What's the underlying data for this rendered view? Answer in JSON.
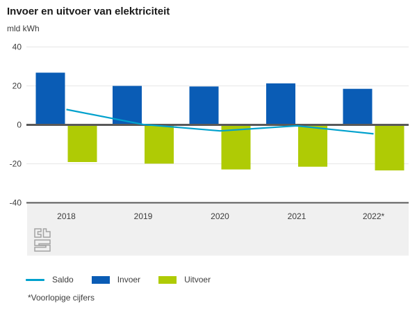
{
  "header": {
    "title": "Invoer en uitvoer van elektriciteit",
    "unit": "mld kWh"
  },
  "footnote": "*Voorlopige cijfers",
  "colors": {
    "invoer": "#0a5cb5",
    "uitvoer": "#afcb05",
    "saldo": "#00a1cd",
    "grid": "#e6e6e6",
    "axis": "#595959",
    "band": "#f0f0f0",
    "text": "#3c3c3c"
  },
  "legend": [
    {
      "label": "Saldo",
      "type": "line"
    },
    {
      "label": "Invoer",
      "type": "rect"
    },
    {
      "label": "Uitvoer",
      "type": "rect"
    }
  ],
  "chart_data": {
    "type": "bar",
    "subtype": "grouped bars with line overlay",
    "title": "Invoer en uitvoer van elektriciteit",
    "ylabel": "mld kWh",
    "xlabel": "",
    "categories": [
      "2018",
      "2019",
      "2020",
      "2021",
      "2022*"
    ],
    "series": [
      {
        "name": "Saldo",
        "type": "line",
        "values": [
          7.9,
          0.2,
          -3.1,
          -0.5,
          -4.6
        ]
      },
      {
        "name": "Invoer",
        "type": "bar",
        "values": [
          26.8,
          20.0,
          19.7,
          21.3,
          18.5
        ]
      },
      {
        "name": "Uitvoer",
        "type": "bar",
        "values": [
          -19.1,
          -19.9,
          -22.9,
          -21.5,
          -23.4
        ]
      }
    ],
    "ylim": [
      -40,
      40
    ],
    "yticks": [
      40,
      20,
      0,
      -20,
      -40
    ],
    "grid": true,
    "legend_position": "bottom"
  }
}
